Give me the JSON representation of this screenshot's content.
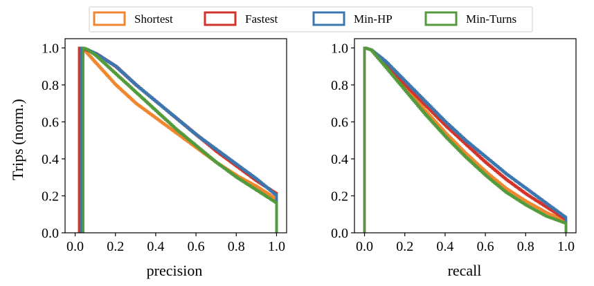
{
  "figure": {
    "ylabel": "Trips (norm.)"
  },
  "legend": {
    "entries": [
      {
        "name": "Shortest",
        "color": "#f0862d"
      },
      {
        "name": "Fastest",
        "color": "#d2332a"
      },
      {
        "name": "Min-HP",
        "color": "#3c76ae"
      },
      {
        "name": "Min-Turns",
        "color": "#539a3c"
      }
    ]
  },
  "chart_data": [
    {
      "type": "line",
      "title": "",
      "xlabel": "precision",
      "ylabel": "Trips (norm.)",
      "xlim": [
        -0.05,
        1.05
      ],
      "ylim": [
        0.0,
        1.05
      ],
      "xticks": [
        "0.0",
        "0.2",
        "0.4",
        "0.6",
        "0.8",
        "1.0"
      ],
      "yticks": [
        "0.0",
        "0.2",
        "0.4",
        "0.6",
        "0.8",
        "1.0"
      ],
      "grid": false,
      "series": [
        {
          "name": "Shortest",
          "color": "#f0862d",
          "start_x": 0.02,
          "x": [
            0.02,
            0.05,
            0.1,
            0.2,
            0.3,
            0.4,
            0.5,
            0.6,
            0.7,
            0.8,
            0.9,
            1.0
          ],
          "y": [
            1.0,
            0.98,
            0.92,
            0.8,
            0.7,
            0.62,
            0.54,
            0.46,
            0.38,
            0.31,
            0.25,
            0.18
          ]
        },
        {
          "name": "Fastest",
          "color": "#d2332a",
          "start_x": 0.02,
          "x": [
            0.02,
            0.05,
            0.1,
            0.2,
            0.3,
            0.4,
            0.5,
            0.6,
            0.7,
            0.8,
            0.9,
            1.0
          ],
          "y": [
            1.0,
            0.99,
            0.97,
            0.9,
            0.8,
            0.71,
            0.62,
            0.53,
            0.44,
            0.36,
            0.28,
            0.21
          ]
        },
        {
          "name": "Min-HP",
          "color": "#3c76ae",
          "start_x": 0.03,
          "x": [
            0.03,
            0.05,
            0.1,
            0.2,
            0.3,
            0.4,
            0.5,
            0.6,
            0.7,
            0.8,
            0.9,
            1.0
          ],
          "y": [
            1.0,
            0.995,
            0.97,
            0.9,
            0.8,
            0.71,
            0.62,
            0.53,
            0.45,
            0.37,
            0.29,
            0.2
          ]
        },
        {
          "name": "Min-Turns",
          "color": "#539a3c",
          "start_x": 0.04,
          "x": [
            0.04,
            0.06,
            0.1,
            0.2,
            0.3,
            0.4,
            0.5,
            0.6,
            0.7,
            0.8,
            0.9,
            1.0
          ],
          "y": [
            1.0,
            0.99,
            0.96,
            0.86,
            0.76,
            0.66,
            0.56,
            0.47,
            0.38,
            0.3,
            0.23,
            0.16
          ]
        }
      ]
    },
    {
      "type": "line",
      "title": "",
      "xlabel": "recall",
      "ylabel": "",
      "xlim": [
        -0.05,
        1.05
      ],
      "ylim": [
        0.0,
        1.05
      ],
      "xticks": [
        "0.0",
        "0.2",
        "0.4",
        "0.6",
        "0.8",
        "1.0"
      ],
      "yticks": [
        "0.0",
        "0.2",
        "0.4",
        "0.6",
        "0.8",
        "1.0"
      ],
      "grid": false,
      "series": [
        {
          "name": "Shortest",
          "color": "#f0862d",
          "start_x": 0.0,
          "x": [
            0.0,
            0.03,
            0.1,
            0.2,
            0.3,
            0.4,
            0.5,
            0.6,
            0.7,
            0.8,
            0.9,
            1.0
          ],
          "y": [
            1.0,
            0.99,
            0.91,
            0.79,
            0.66,
            0.54,
            0.43,
            0.33,
            0.24,
            0.17,
            0.11,
            0.06
          ]
        },
        {
          "name": "Fastest",
          "color": "#d2332a",
          "start_x": 0.0,
          "x": [
            0.0,
            0.03,
            0.1,
            0.2,
            0.3,
            0.4,
            0.5,
            0.6,
            0.7,
            0.8,
            0.9,
            1.0
          ],
          "y": [
            1.0,
            0.99,
            0.92,
            0.8,
            0.69,
            0.58,
            0.48,
            0.38,
            0.29,
            0.21,
            0.14,
            0.07
          ]
        },
        {
          "name": "Min-HP",
          "color": "#3c76ae",
          "start_x": 0.0,
          "x": [
            0.0,
            0.03,
            0.1,
            0.2,
            0.3,
            0.4,
            0.5,
            0.6,
            0.7,
            0.8,
            0.9,
            1.0
          ],
          "y": [
            1.0,
            0.99,
            0.93,
            0.82,
            0.71,
            0.6,
            0.5,
            0.41,
            0.32,
            0.24,
            0.16,
            0.08
          ]
        },
        {
          "name": "Min-Turns",
          "color": "#539a3c",
          "start_x": 0.0,
          "x": [
            0.0,
            0.03,
            0.1,
            0.2,
            0.3,
            0.4,
            0.5,
            0.6,
            0.7,
            0.8,
            0.9,
            1.0
          ],
          "y": [
            1.0,
            0.99,
            0.9,
            0.77,
            0.64,
            0.52,
            0.41,
            0.31,
            0.22,
            0.15,
            0.09,
            0.05
          ]
        }
      ]
    }
  ]
}
